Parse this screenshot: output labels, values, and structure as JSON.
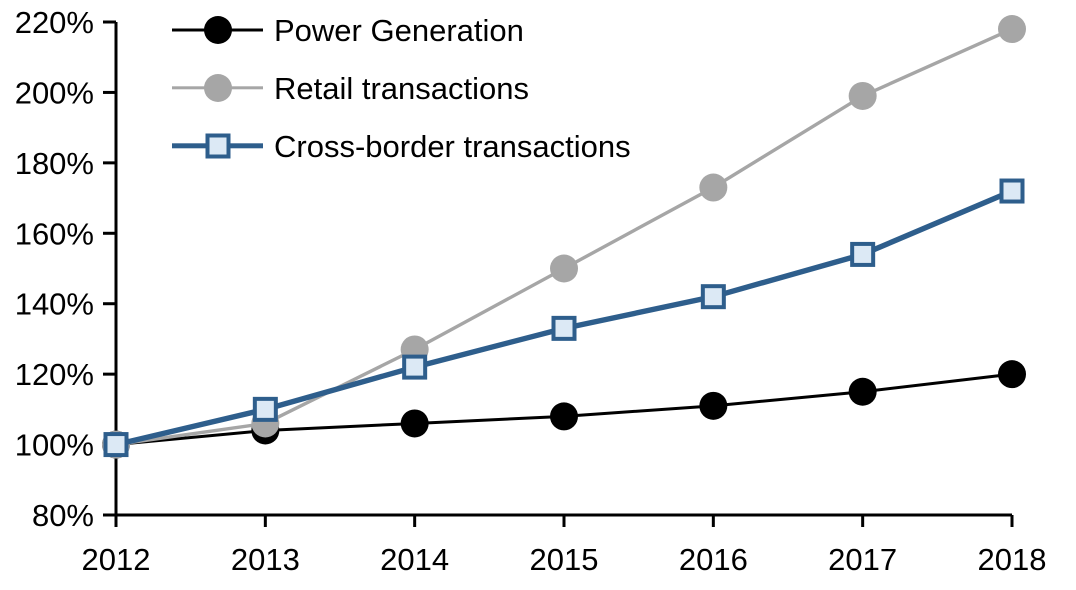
{
  "chart_data": {
    "type": "line",
    "title": "",
    "background": "#FFFFFF",
    "axis_color": "#000000",
    "grid": false,
    "x_categories": [
      "2012",
      "2013",
      "2014",
      "2015",
      "2016",
      "2017",
      "2018"
    ],
    "series": [
      {
        "name": "Power Generation",
        "values": [
          100,
          104,
          106,
          108,
          111,
          115,
          120
        ],
        "color": "#000000",
        "marker": "circle",
        "marker_fill": "#000000",
        "line_width": 3
      },
      {
        "name": "Retail transactions",
        "values": [
          100,
          106,
          127,
          150,
          173,
          199,
          218
        ],
        "color": "#A6A6A6",
        "marker": "circle",
        "marker_fill": "#A6A6A6",
        "line_width": 3.4
      },
      {
        "name": "Cross-border transactions",
        "values": [
          100,
          110,
          122,
          133,
          142,
          154,
          172
        ],
        "color": "#2E5E8C",
        "marker": "square",
        "marker_fill": "#DCE9F5",
        "line_width": 5.4
      }
    ],
    "y_axis": {
      "min": 80,
      "max": 220,
      "step": 20,
      "unit": "%",
      "tick_labels": [
        "80%",
        "100%",
        "120%",
        "140%",
        "160%",
        "180%",
        "200%",
        "220%"
      ]
    },
    "x_axis": {
      "tick_labels": [
        "2012",
        "2013",
        "2014",
        "2015",
        "2016",
        "2017",
        "2018"
      ]
    },
    "legend": {
      "position": "top-left",
      "entries": [
        "Power Generation",
        "Retail transactions",
        "Cross-border transactions"
      ]
    }
  }
}
